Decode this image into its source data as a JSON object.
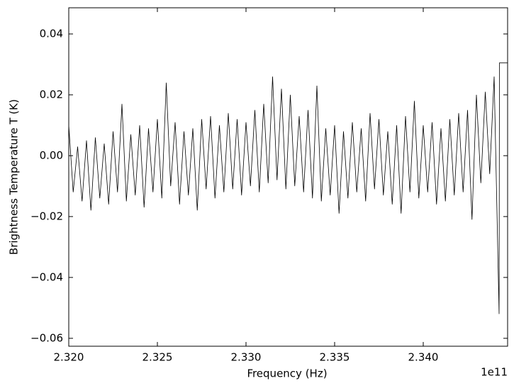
{
  "chart_data": {
    "type": "line",
    "xlabel": "Frequency (Hz)",
    "ylabel": "Brightness Temperature T (K)",
    "x_offset_label": "1e11",
    "color": "#000000",
    "x": [
      232000000000.0,
      232025000000.0,
      232050000000.0,
      232075000000.0,
      232100000000.0,
      232125000000.0,
      232150000000.0,
      232175000000.0,
      232200000000.0,
      232225000000.0,
      232250000000.0,
      232275000000.0,
      232300000000.0,
      232325000000.0,
      232350000000.0,
      232375000000.0,
      232400000000.0,
      232425000000.0,
      232450000000.0,
      232475000000.0,
      232500000000.0,
      232525000000.0,
      232550000000.0,
      232575000000.0,
      232600000000.0,
      232625000000.0,
      232650000000.0,
      232675000000.0,
      232700000000.0,
      232725000000.0,
      232750000000.0,
      232775000000.0,
      232800000000.0,
      232825000000.0,
      232850000000.0,
      232875000000.0,
      232900000000.0,
      232925000000.0,
      232950000000.0,
      232975000000.0,
      233000000000.0,
      233025000000.0,
      233050000000.0,
      233075000000.0,
      233100000000.0,
      233125000000.0,
      233150000000.0,
      233175000000.0,
      233200000000.0,
      233225000000.0,
      233250000000.0,
      233275000000.0,
      233300000000.0,
      233325000000.0,
      233350000000.0,
      233375000000.0,
      233400000000.0,
      233425000000.0,
      233450000000.0,
      233475000000.0,
      233500000000.0,
      233525000000.0,
      233550000000.0,
      233575000000.0,
      233600000000.0,
      233625000000.0,
      233650000000.0,
      233675000000.0,
      233700000000.0,
      233725000000.0,
      233750000000.0,
      233775000000.0,
      233800000000.0,
      233825000000.0,
      233850000000.0,
      233875000000.0,
      233900000000.0,
      233925000000.0,
      233950000000.0,
      233975000000.0,
      234000000000.0,
      234025000000.0,
      234050000000.0,
      234075000000.0,
      234100000000.0,
      234125000000.0,
      234150000000.0,
      234175000000.0,
      234200000000.0,
      234225000000.0,
      234250000000.0,
      234275000000.0,
      234300000000.0,
      234325000000.0,
      234350000000.0,
      234375000000.0,
      234400000000.0,
      234428000000.0,
      234430000000.0,
      234476000000.0
    ],
    "values": [
      0.01,
      -0.012,
      0.003,
      -0.015,
      0.005,
      -0.018,
      0.006,
      -0.014,
      0.004,
      -0.016,
      0.008,
      -0.012,
      0.017,
      -0.015,
      0.007,
      -0.013,
      0.01,
      -0.017,
      0.009,
      -0.012,
      0.012,
      -0.014,
      0.024,
      -0.01,
      0.011,
      -0.016,
      0.008,
      -0.013,
      0.009,
      -0.018,
      0.012,
      -0.011,
      0.013,
      -0.014,
      0.01,
      -0.012,
      0.014,
      -0.011,
      0.012,
      -0.013,
      0.011,
      -0.01,
      0.015,
      -0.012,
      0.017,
      -0.009,
      0.026,
      -0.008,
      0.022,
      -0.011,
      0.02,
      -0.01,
      0.013,
      -0.012,
      0.015,
      -0.014,
      0.023,
      -0.015,
      0.009,
      -0.013,
      0.01,
      -0.019,
      0.008,
      -0.014,
      0.011,
      -0.012,
      0.009,
      -0.015,
      0.014,
      -0.011,
      0.012,
      -0.013,
      0.008,
      -0.016,
      0.01,
      -0.019,
      0.013,
      -0.012,
      0.018,
      -0.014,
      0.01,
      -0.012,
      0.011,
      -0.016,
      0.009,
      -0.015,
      0.012,
      -0.013,
      0.014,
      -0.012,
      0.015,
      -0.021,
      0.02,
      -0.009,
      0.021,
      -0.006,
      0.026,
      -0.052,
      0.0305,
      0.0305
    ],
    "xlim": [
      232000000000.0,
      234476000000.0
    ],
    "ylim": [
      -0.0626,
      0.0486
    ],
    "xticks": [
      {
        "value": 232000000000.0,
        "label": "2.320"
      },
      {
        "value": 232500000000.0,
        "label": "2.325"
      },
      {
        "value": 233000000000.0,
        "label": "2.330"
      },
      {
        "value": 233500000000.0,
        "label": "2.335"
      },
      {
        "value": 234000000000.0,
        "label": "2.340"
      }
    ],
    "yticks": [
      0.04,
      0.02,
      {
        "value": 0,
        "label": "0.00"
      },
      {
        "value": -0.02,
        "label": "−0.02"
      },
      {
        "value": -0.04,
        "label": "−0.04"
      },
      {
        "value": -0.06,
        "label": "−0.06"
      }
    ],
    "grid": false
  }
}
